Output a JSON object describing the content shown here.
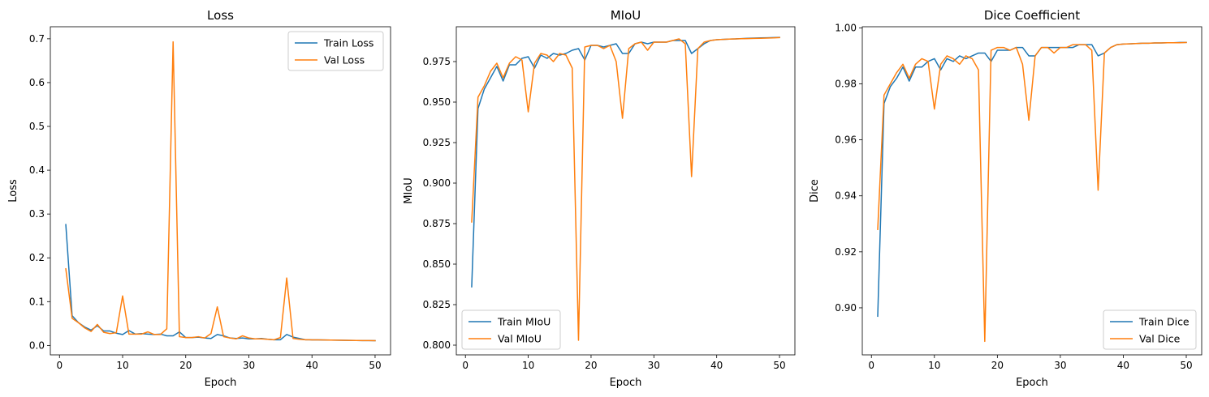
{
  "chart_data": [
    {
      "type": "line",
      "title": "Loss",
      "xlabel": "Epoch",
      "ylabel": "Loss",
      "xlim": [
        -1.45,
        52.45
      ],
      "ylim": [
        -0.0215,
        0.7275
      ],
      "xticks": [
        0,
        10,
        20,
        30,
        40,
        50
      ],
      "yticks": [
        0.0,
        0.1,
        0.2,
        0.3,
        0.4,
        0.5,
        0.6,
        0.7
      ],
      "ytick_format": 1,
      "legend_position": "upper-right",
      "x": [
        1,
        2,
        3,
        4,
        5,
        6,
        7,
        8,
        9,
        10,
        11,
        12,
        13,
        14,
        15,
        16,
        17,
        18,
        19,
        20,
        21,
        22,
        23,
        24,
        25,
        26,
        27,
        28,
        29,
        30,
        31,
        32,
        33,
        34,
        35,
        36,
        37,
        38,
        39,
        40,
        41,
        42,
        43,
        44,
        45,
        46,
        47,
        48,
        49,
        50
      ],
      "series": [
        {
          "name": "Train Loss",
          "color": "#1f77b4",
          "values": [
            0.276,
            0.068,
            0.052,
            0.042,
            0.035,
            0.045,
            0.033,
            0.033,
            0.028,
            0.025,
            0.034,
            0.026,
            0.027,
            0.026,
            0.025,
            0.026,
            0.022,
            0.022,
            0.031,
            0.018,
            0.018,
            0.019,
            0.017,
            0.016,
            0.025,
            0.022,
            0.017,
            0.016,
            0.017,
            0.015,
            0.015,
            0.016,
            0.014,
            0.013,
            0.013,
            0.025,
            0.019,
            0.016,
            0.013,
            0.0128,
            0.0126,
            0.0124,
            0.0122,
            0.012,
            0.0118,
            0.0116,
            0.0114,
            0.0112,
            0.011,
            0.0108
          ]
        },
        {
          "name": "Val Loss",
          "color": "#ff7f0e",
          "values": [
            0.175,
            0.062,
            0.052,
            0.04,
            0.032,
            0.048,
            0.03,
            0.027,
            0.029,
            0.113,
            0.026,
            0.026,
            0.026,
            0.031,
            0.025,
            0.025,
            0.038,
            0.693,
            0.02,
            0.018,
            0.018,
            0.02,
            0.017,
            0.027,
            0.088,
            0.02,
            0.017,
            0.015,
            0.022,
            0.017,
            0.015,
            0.015,
            0.014,
            0.013,
            0.018,
            0.154,
            0.016,
            0.014,
            0.013,
            0.0128,
            0.0126,
            0.0124,
            0.0122,
            0.012,
            0.0118,
            0.0116,
            0.0114,
            0.0112,
            0.011,
            0.0109
          ]
        }
      ]
    },
    {
      "type": "line",
      "title": "MIoU",
      "xlabel": "Epoch",
      "ylabel": "MIoU",
      "xlim": [
        -1.45,
        52.45
      ],
      "ylim": [
        0.794,
        0.9965
      ],
      "xticks": [
        0,
        10,
        20,
        30,
        40,
        50
      ],
      "yticks": [
        0.8,
        0.825,
        0.85,
        0.875,
        0.9,
        0.925,
        0.95,
        0.975
      ],
      "ytick_format": 3,
      "legend_position": "lower-left",
      "x": [
        1,
        2,
        3,
        4,
        5,
        6,
        7,
        8,
        9,
        10,
        11,
        12,
        13,
        14,
        15,
        16,
        17,
        18,
        19,
        20,
        21,
        22,
        23,
        24,
        25,
        26,
        27,
        28,
        29,
        30,
        31,
        32,
        33,
        34,
        35,
        36,
        37,
        38,
        39,
        40,
        41,
        42,
        43,
        44,
        45,
        46,
        47,
        48,
        49,
        50
      ],
      "series": [
        {
          "name": "Train MIoU",
          "color": "#1f77b4",
          "values": [
            0.836,
            0.946,
            0.958,
            0.965,
            0.972,
            0.963,
            0.973,
            0.973,
            0.977,
            0.978,
            0.971,
            0.979,
            0.977,
            0.98,
            0.979,
            0.98,
            0.982,
            0.983,
            0.976,
            0.985,
            0.985,
            0.984,
            0.985,
            0.986,
            0.98,
            0.98,
            0.986,
            0.987,
            0.986,
            0.987,
            0.987,
            0.987,
            0.988,
            0.988,
            0.988,
            0.98,
            0.983,
            0.986,
            0.988,
            0.9885,
            0.9887,
            0.9889,
            0.989,
            0.9892,
            0.9894,
            0.9895,
            0.9896,
            0.9897,
            0.9898,
            0.9899
          ]
        },
        {
          "name": "Val MIoU",
          "color": "#ff7f0e",
          "values": [
            0.876,
            0.953,
            0.96,
            0.969,
            0.974,
            0.965,
            0.974,
            0.978,
            0.976,
            0.944,
            0.974,
            0.98,
            0.979,
            0.975,
            0.98,
            0.979,
            0.971,
            0.803,
            0.984,
            0.985,
            0.985,
            0.983,
            0.985,
            0.975,
            0.94,
            0.983,
            0.986,
            0.987,
            0.982,
            0.987,
            0.987,
            0.987,
            0.988,
            0.989,
            0.986,
            0.904,
            0.983,
            0.987,
            0.988,
            0.9885,
            0.9887,
            0.9889,
            0.989,
            0.9891,
            0.9892,
            0.9893,
            0.9894,
            0.9895,
            0.9896,
            0.9898
          ]
        }
      ]
    },
    {
      "type": "line",
      "title": "Dice Coefficient",
      "xlabel": "Epoch",
      "ylabel": "Dice",
      "xlim": [
        -1.45,
        52.45
      ],
      "ylim": [
        0.8832,
        1.0004
      ],
      "xticks": [
        0,
        10,
        20,
        30,
        40,
        50
      ],
      "yticks": [
        0.9,
        0.92,
        0.94,
        0.96,
        0.98,
        1.0
      ],
      "ytick_format": 2,
      "legend_position": "lower-right",
      "x": [
        1,
        2,
        3,
        4,
        5,
        6,
        7,
        8,
        9,
        10,
        11,
        12,
        13,
        14,
        15,
        16,
        17,
        18,
        19,
        20,
        21,
        22,
        23,
        24,
        25,
        26,
        27,
        28,
        29,
        30,
        31,
        32,
        33,
        34,
        35,
        36,
        37,
        38,
        39,
        40,
        41,
        42,
        43,
        44,
        45,
        46,
        47,
        48,
        49,
        50
      ],
      "series": [
        {
          "name": "Train Dice",
          "color": "#1f77b4",
          "values": [
            0.897,
            0.973,
            0.979,
            0.982,
            0.986,
            0.981,
            0.986,
            0.986,
            0.988,
            0.989,
            0.985,
            0.989,
            0.988,
            0.99,
            0.989,
            0.99,
            0.991,
            0.991,
            0.988,
            0.992,
            0.992,
            0.992,
            0.993,
            0.993,
            0.99,
            0.99,
            0.993,
            0.993,
            0.993,
            0.993,
            0.993,
            0.993,
            0.994,
            0.994,
            0.994,
            0.99,
            0.991,
            0.993,
            0.994,
            0.9942,
            0.9943,
            0.9944,
            0.9945,
            0.9945,
            0.9946,
            0.9946,
            0.9947,
            0.9947,
            0.9948,
            0.9948
          ]
        },
        {
          "name": "Val Dice",
          "color": "#ff7f0e",
          "values": [
            0.928,
            0.976,
            0.98,
            0.984,
            0.987,
            0.982,
            0.987,
            0.989,
            0.988,
            0.971,
            0.987,
            0.99,
            0.989,
            0.987,
            0.99,
            0.989,
            0.985,
            0.888,
            0.992,
            0.993,
            0.993,
            0.992,
            0.993,
            0.987,
            0.967,
            0.99,
            0.993,
            0.993,
            0.991,
            0.993,
            0.993,
            0.994,
            0.994,
            0.994,
            0.992,
            0.942,
            0.991,
            0.993,
            0.994,
            0.9942,
            0.9943,
            0.9944,
            0.9945,
            0.9945,
            0.9946,
            0.9946,
            0.9947,
            0.9947,
            0.9947,
            0.9948
          ]
        }
      ]
    }
  ]
}
